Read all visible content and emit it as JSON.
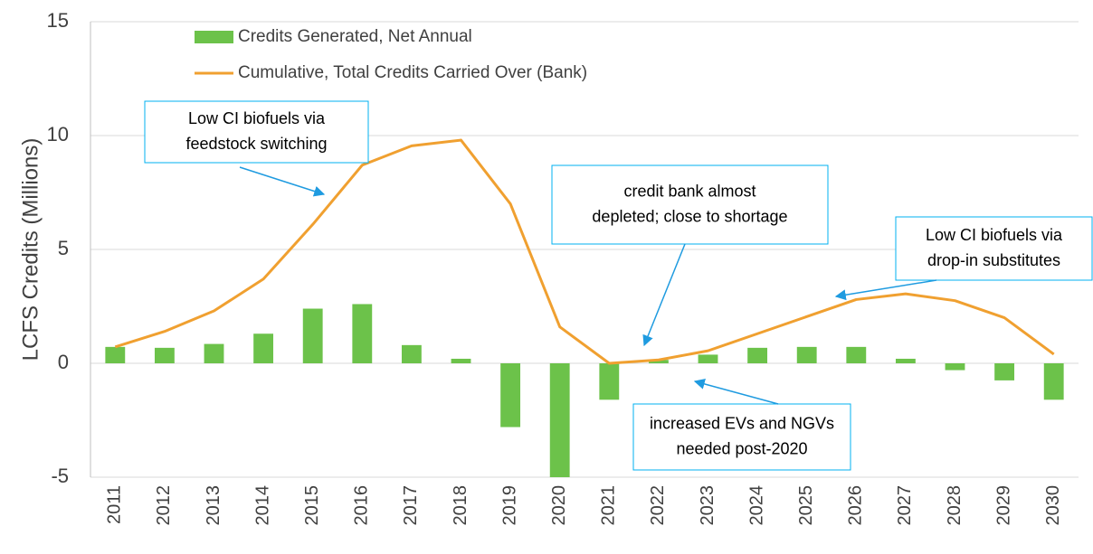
{
  "chart_data": {
    "type": "bar_line",
    "y_label": "LCFS Credits (Millions)",
    "categories": [
      "2011",
      "2012",
      "2013",
      "2014",
      "2015",
      "2016",
      "2017",
      "2018",
      "2019",
      "2020",
      "2021",
      "2022",
      "2023",
      "2024",
      "2025",
      "2026",
      "2027",
      "2028",
      "2029",
      "2030"
    ],
    "series": [
      {
        "name": "Credits Generated, Net Annual",
        "type": "bar",
        "color": "#6cc24a",
        "values": [
          0.72,
          0.68,
          0.85,
          1.3,
          2.4,
          2.6,
          0.8,
          0.2,
          -2.8,
          -5.0,
          -1.6,
          0.15,
          0.38,
          0.68,
          0.72,
          0.72,
          0.2,
          -0.3,
          -0.75,
          -1.6
        ]
      },
      {
        "name": "Cumulative, Total Credits Carried Over (Bank)",
        "type": "line",
        "color": "#f0a030",
        "values": [
          0.72,
          1.4,
          2.3,
          3.7,
          6.1,
          8.7,
          9.55,
          9.8,
          7.0,
          1.6,
          0.0,
          0.15,
          0.55,
          1.3,
          2.05,
          2.8,
          3.05,
          2.75,
          2.0,
          0.4
        ]
      }
    ],
    "ylim": [
      -5,
      15
    ],
    "yticks": [
      -5,
      0,
      5,
      10,
      15
    ],
    "grid": true,
    "annotations": [
      {
        "lines": [
          "Low CI biofuels via",
          "feedstock switching"
        ]
      },
      {
        "lines": [
          "credit bank almost",
          "depleted; close to shortage"
        ]
      },
      {
        "lines": [
          "Low CI biofuels via",
          "drop-in substitutes"
        ]
      },
      {
        "lines": [
          "increased EVs and NGVs",
          "needed post-2020"
        ]
      }
    ]
  }
}
